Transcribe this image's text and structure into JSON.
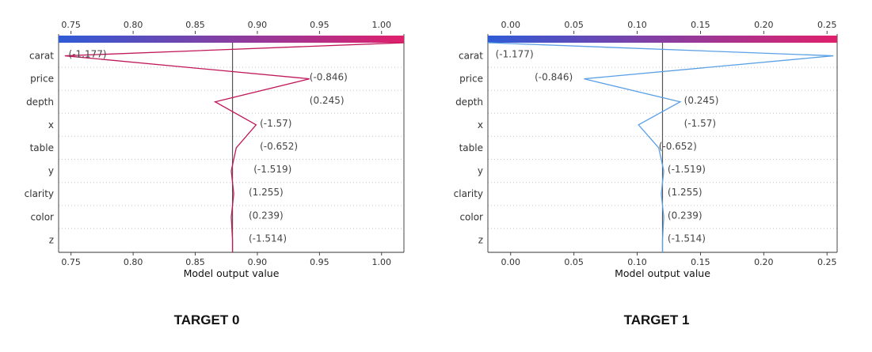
{
  "chart_data": [
    {
      "type": "line",
      "caption": "TARGET 0",
      "xlabel": "Model output value",
      "xlim": [
        0.74,
        1.018
      ],
      "xticks": [
        0.75,
        0.8,
        0.85,
        0.9,
        0.95,
        1.0
      ],
      "xtick_labels": [
        "0.75",
        "0.80",
        "0.85",
        "0.90",
        "0.95",
        "1.00"
      ],
      "base_value": 0.88,
      "colorbar": {
        "from": "#2f5bd6",
        "to": "#e0206c"
      },
      "line_color": "#c0185a",
      "start_value": 1.018,
      "features": [
        {
          "name": "carat",
          "label": "(-1.177)",
          "x": 0.745
        },
        {
          "name": "price",
          "label": "(-0.846)",
          "x": 0.942
        },
        {
          "name": "depth",
          "label": "(0.245)",
          "x": 0.866
        },
        {
          "name": "x",
          "label": "(-1.57)",
          "x": 0.899
        },
        {
          "name": "table",
          "label": "(-0.652)",
          "x": 0.883
        },
        {
          "name": "y",
          "label": "(-1.519)",
          "x": 0.879
        },
        {
          "name": "clarity",
          "label": "(1.255)",
          "x": 0.881
        },
        {
          "name": "color",
          "label": "(0.239)",
          "x": 0.879
        },
        {
          "name": "z",
          "label": "(-1.514)",
          "x": 0.88
        }
      ],
      "label_x": [
        0.748,
        0.942,
        0.942,
        0.902,
        0.902,
        0.897,
        0.893,
        0.893,
        0.893
      ]
    },
    {
      "type": "line",
      "caption": "TARGET 1",
      "xlabel": "Model output value",
      "xlim": [
        -0.018,
        0.258
      ],
      "xticks": [
        0.0,
        0.05,
        0.1,
        0.15,
        0.2,
        0.25
      ],
      "xtick_labels": [
        "0.00",
        "0.05",
        "0.10",
        "0.15",
        "0.20",
        "0.25"
      ],
      "base_value": 0.12,
      "colorbar": {
        "from": "#2f5bd6",
        "to": "#e0206c"
      },
      "line_color": "#5aa0e6",
      "start_value": -0.018,
      "features": [
        {
          "name": "carat",
          "label": "(-1.177)",
          "x": 0.255
        },
        {
          "name": "price",
          "label": "(-0.846)",
          "x": 0.058
        },
        {
          "name": "depth",
          "label": "(0.245)",
          "x": 0.134
        },
        {
          "name": "x",
          "label": "(-1.57)",
          "x": 0.101
        },
        {
          "name": "table",
          "label": "(-0.652)",
          "x": 0.117
        },
        {
          "name": "y",
          "label": "(-1.519)",
          "x": 0.121
        },
        {
          "name": "clarity",
          "label": "(1.255)",
          "x": 0.119
        },
        {
          "name": "color",
          "label": "(0.239)",
          "x": 0.121
        },
        {
          "name": "z",
          "label": "(-1.514)",
          "x": 0.12
        }
      ],
      "label_x": [
        -0.012,
        0.019,
        0.137,
        0.137,
        0.117,
        0.124,
        0.124,
        0.124,
        0.124
      ]
    }
  ]
}
